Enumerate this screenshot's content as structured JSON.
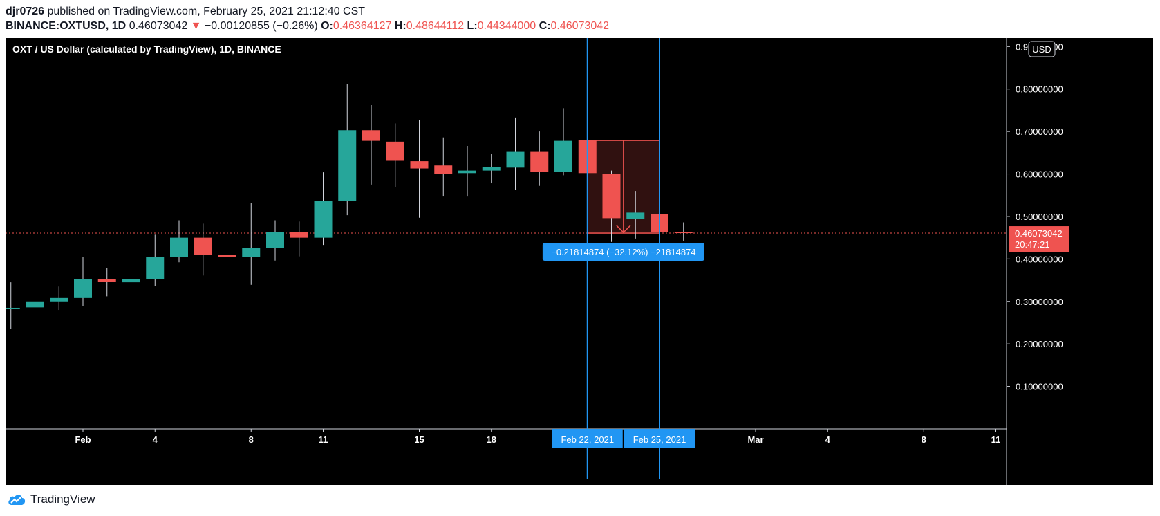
{
  "header": {
    "author": "djr0726",
    "published_text": " published on TradingView.com, February 25, 2021 21:12:40 CST",
    "symbol": "BINANCE:OXTUSD",
    "interval": ", 1D ",
    "last": "0.46073042",
    "change_arrow": "▼",
    "change": " −0.00120855 (−0.26%) ",
    "o_label": "O:",
    "open": "0.46364127",
    "h_label": "H:",
    "high": "0.48644112",
    "l_label": "L:",
    "low": "0.44344000",
    "c_label": "C:",
    "close": "0.46073042"
  },
  "brand": {
    "name": "TradingView"
  },
  "colors": {
    "background": "#000000",
    "up": "#26a69a",
    "down": "#ef5350",
    "range_line": "#2196f3",
    "price_line": "#ef5350"
  },
  "chart_data": {
    "type": "candlestick",
    "title": "OXT / US Dollar (calculated by TradingView), 1D, BINANCE",
    "currency_label": "USD",
    "ylim": [
      0.0,
      0.92
    ],
    "y_ticks": [
      "0.10000000",
      "0.20000000",
      "0.30000000",
      "0.40000000",
      "0.50000000",
      "0.60000000",
      "0.70000000",
      "0.80000000",
      "0.90000000"
    ],
    "x_ticks": [
      {
        "label": "Feb",
        "day": 1
      },
      {
        "label": "4",
        "day": 4
      },
      {
        "label": "8",
        "day": 8
      },
      {
        "label": "11",
        "day": 11
      },
      {
        "label": "15",
        "day": 15
      },
      {
        "label": "18",
        "day": 18
      },
      {
        "label": "Mar",
        "day": 29
      },
      {
        "label": "4",
        "day": 32
      },
      {
        "label": "8",
        "day": 36
      },
      {
        "label": "11",
        "day": 39
      }
    ],
    "candles": [
      {
        "day": -2,
        "o": 0.283,
        "h": 0.345,
        "l": 0.236,
        "c": 0.285
      },
      {
        "day": -1,
        "o": 0.286,
        "h": 0.322,
        "l": 0.269,
        "c": 0.3
      },
      {
        "day": 0,
        "o": 0.3,
        "h": 0.335,
        "l": 0.28,
        "c": 0.308
      },
      {
        "day": 1,
        "o": 0.308,
        "h": 0.405,
        "l": 0.289,
        "c": 0.353
      },
      {
        "day": 2,
        "o": 0.352,
        "h": 0.378,
        "l": 0.312,
        "c": 0.346
      },
      {
        "day": 3,
        "o": 0.345,
        "h": 0.377,
        "l": 0.324,
        "c": 0.352
      },
      {
        "day": 4,
        "o": 0.352,
        "h": 0.457,
        "l": 0.337,
        "c": 0.405
      },
      {
        "day": 5,
        "o": 0.405,
        "h": 0.491,
        "l": 0.392,
        "c": 0.45
      },
      {
        "day": 6,
        "o": 0.45,
        "h": 0.483,
        "l": 0.361,
        "c": 0.409
      },
      {
        "day": 7,
        "o": 0.41,
        "h": 0.456,
        "l": 0.374,
        "c": 0.405
      },
      {
        "day": 8,
        "o": 0.405,
        "h": 0.532,
        "l": 0.339,
        "c": 0.426
      },
      {
        "day": 9,
        "o": 0.426,
        "h": 0.491,
        "l": 0.396,
        "c": 0.463
      },
      {
        "day": 10,
        "o": 0.463,
        "h": 0.488,
        "l": 0.406,
        "c": 0.45
      },
      {
        "day": 11,
        "o": 0.45,
        "h": 0.604,
        "l": 0.433,
        "c": 0.536
      },
      {
        "day": 12,
        "o": 0.536,
        "h": 0.811,
        "l": 0.503,
        "c": 0.703
      },
      {
        "day": 13,
        "o": 0.703,
        "h": 0.762,
        "l": 0.575,
        "c": 0.678
      },
      {
        "day": 14,
        "o": 0.676,
        "h": 0.719,
        "l": 0.569,
        "c": 0.631
      },
      {
        "day": 15,
        "o": 0.63,
        "h": 0.727,
        "l": 0.497,
        "c": 0.613
      },
      {
        "day": 16,
        "o": 0.62,
        "h": 0.686,
        "l": 0.547,
        "c": 0.6
      },
      {
        "day": 17,
        "o": 0.602,
        "h": 0.666,
        "l": 0.547,
        "c": 0.608
      },
      {
        "day": 18,
        "o": 0.608,
        "h": 0.648,
        "l": 0.578,
        "c": 0.617
      },
      {
        "day": 19,
        "o": 0.615,
        "h": 0.733,
        "l": 0.563,
        "c": 0.652
      },
      {
        "day": 20,
        "o": 0.652,
        "h": 0.7,
        "l": 0.572,
        "c": 0.605
      },
      {
        "day": 21,
        "o": 0.605,
        "h": 0.755,
        "l": 0.597,
        "c": 0.678
      },
      {
        "day": 22,
        "o": 0.68,
        "h": 0.688,
        "l": 0.6,
        "c": 0.602
      },
      {
        "day": 23,
        "o": 0.6,
        "h": 0.608,
        "l": 0.44,
        "c": 0.496
      },
      {
        "day": 24,
        "o": 0.495,
        "h": 0.56,
        "l": 0.448,
        "c": 0.509
      },
      {
        "day": 25,
        "o": 0.506,
        "h": 0.54,
        "l": 0.458,
        "c": 0.463
      },
      {
        "day": 26,
        "o": 0.464,
        "h": 0.486,
        "l": 0.443,
        "c": 0.461
      }
    ],
    "current_price": {
      "value": 0.46073042,
      "label": "0.46073042",
      "countdown": "20:47:21"
    },
    "date_range": {
      "start_day": 22,
      "end_day": 25,
      "start_label": "Feb 22, 2021",
      "end_label": "Feb 25, 2021",
      "from_price": 0.67887916,
      "to_price": 0.46073042,
      "summary": "−0.21814874 (−32.12%) −21814874"
    }
  }
}
